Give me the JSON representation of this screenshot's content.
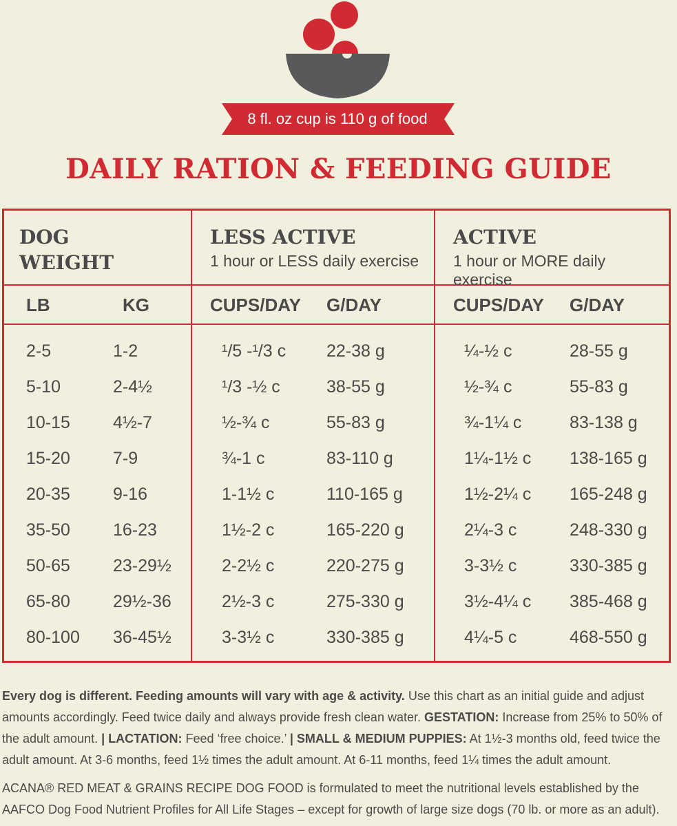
{
  "colors": {
    "accent": "#d02a32",
    "bowl": "#58595b",
    "background": "#f1efdd",
    "text": "#4a4a4a"
  },
  "header": {
    "ribbon": "8 fl. oz cup is 110 g of food",
    "title": "DAILY RATION & FEEDING GUIDE"
  },
  "groups": {
    "weight": {
      "title_line1": "DOG",
      "title_line2": "WEIGHT"
    },
    "less": {
      "title": "LESS ACTIVE",
      "subtitle": "1 hour or LESS daily exercise"
    },
    "active": {
      "title": "ACTIVE",
      "subtitle": "1 hour or MORE daily exercise"
    }
  },
  "columns": [
    "LB",
    "KG",
    "CUPS/DAY",
    "G/DAY",
    "CUPS/DAY",
    "G/DAY"
  ],
  "rows": [
    [
      "2-5",
      "1-2",
      "¹/5 -¹/3 c",
      "22-38 g",
      "¼-½ c",
      "28-55 g"
    ],
    [
      "5-10",
      "2-4½",
      "¹/3 -½ c",
      "38-55 g",
      "½-¾ c",
      "55-83 g"
    ],
    [
      "10-15",
      "4½-7",
      "½-¾ c",
      "55-83 g",
      "¾-1¼ c",
      "83-138 g"
    ],
    [
      "15-20",
      "7-9",
      "¾-1 c",
      "83-110 g",
      "1¼-1½ c",
      "138-165 g"
    ],
    [
      "20-35",
      "9-16",
      "1-1½ c",
      "110-165 g",
      "1½-2¼ c",
      "165-248 g"
    ],
    [
      "35-50",
      "16-23",
      "1½-2 c",
      "165-220 g",
      "2¼-3 c",
      "248-330 g"
    ],
    [
      "50-65",
      "23-29½",
      "2-2½ c",
      "220-275 g",
      "3-3½ c",
      "330-385 g"
    ],
    [
      "65-80",
      "29½-36",
      "2½-3 c",
      "275-330 g",
      "3½-4¼ c",
      "385-468 g"
    ],
    [
      "80-100",
      "36-45½",
      "3-3½ c",
      "330-385 g",
      "4¼-5 c",
      "468-550 g"
    ]
  ],
  "footer": {
    "p1_b1": "Every dog is different. Feeding amounts will vary with age & activity.",
    "p1_t1": " Use this chart as an initial guide and adjust amounts accordingly. Feed twice daily and always provide fresh clean water. ",
    "p1_b2": "GESTATION:",
    "p1_t2": " Increase from 25% to 50% of the adult amount. ",
    "p1_b3": "| LACTATION:",
    "p1_t3": " Feed ‘free choice.’ ",
    "p1_b4": "| SMALL & MEDIUM PUPPIES:",
    "p1_t4": " At 1½-3 months old, feed twice the adult amount. At 3-6 months, feed 1½ times the adult amount. At 6-11 months, feed 1¼ times the adult amount.",
    "p2": "ACANA® RED MEAT & GRAINS RECIPE DOG FOOD is formulated to meet the nutritional levels established by the AAFCO Dog Food Nutrient Profiles for All Life Stages – except for growth of large size dogs (70 lb. or more as an adult)."
  }
}
